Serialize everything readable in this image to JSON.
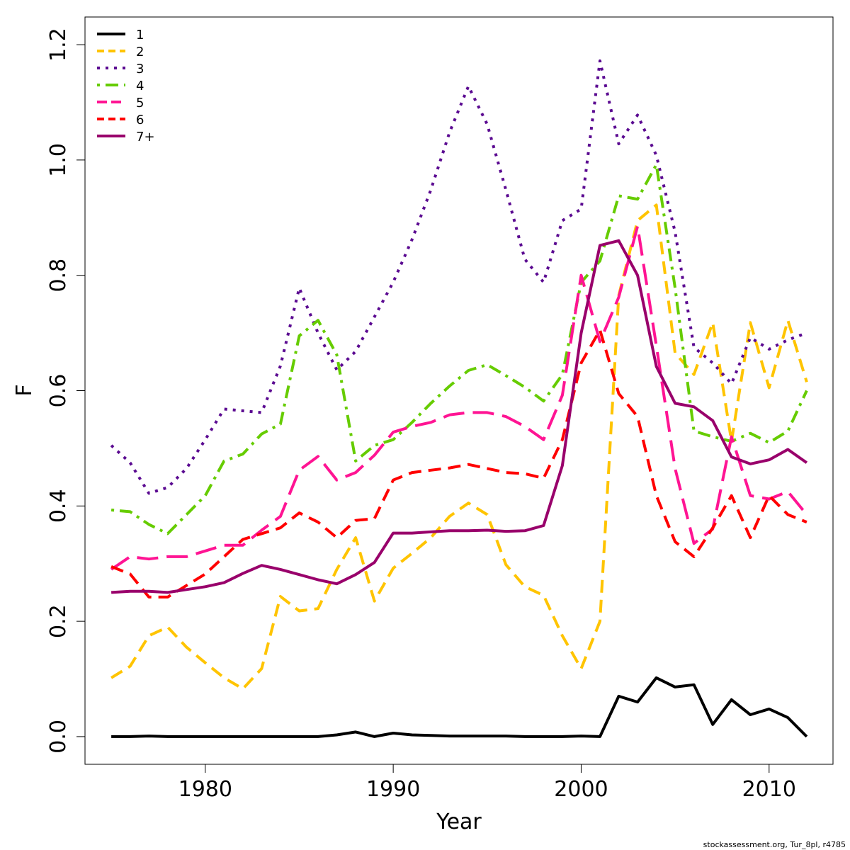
{
  "chart_data": {
    "type": "line",
    "xlabel": "Year",
    "ylabel": "F",
    "xlim": [
      1973.6,
      2013.4
    ],
    "ylim": [
      -0.048,
      1.248
    ],
    "x_ticks": [
      1980,
      1990,
      2000,
      2010
    ],
    "y_ticks": [
      0.0,
      0.2,
      0.4,
      0.6,
      0.8,
      1.0,
      1.2
    ],
    "x_tick_labels": [
      "1980",
      "1990",
      "2000",
      "2010"
    ],
    "y_tick_labels": [
      "0.0",
      "0.2",
      "0.4",
      "0.6",
      "0.8",
      "1.0",
      "1.2"
    ],
    "legend_position": "top-left",
    "grid": false,
    "x": [
      1975,
      1976,
      1977,
      1978,
      1979,
      1980,
      1981,
      1982,
      1983,
      1984,
      1985,
      1986,
      1987,
      1988,
      1989,
      1990,
      1991,
      1992,
      1993,
      1994,
      1995,
      1996,
      1997,
      1998,
      1999,
      2000,
      2001,
      2002,
      2003,
      2004,
      2005,
      2006,
      2007,
      2008,
      2009,
      2010,
      2011,
      2012
    ],
    "series": [
      {
        "name": "1",
        "color": "#000000",
        "dash": "solid",
        "values": [
          0.0,
          0.0,
          0.001,
          0.0,
          0.0,
          0.0,
          0.0,
          0.0,
          0.0,
          0.0,
          0.0,
          0.0,
          0.003,
          0.008,
          0.0,
          0.006,
          0.003,
          0.002,
          0.001,
          0.001,
          0.001,
          0.001,
          0.0,
          0.0,
          0.0,
          0.001,
          0.0,
          0.07,
          0.06,
          0.102,
          0.086,
          0.09,
          0.021,
          0.064,
          0.038,
          0.048,
          0.033,
          0.0
        ]
      },
      {
        "name": "2",
        "color": "#FFC400",
        "dash": "dashed",
        "values": [
          0.102,
          0.122,
          0.175,
          0.19,
          0.155,
          0.128,
          0.102,
          0.083,
          0.118,
          0.243,
          0.218,
          0.222,
          0.29,
          0.345,
          0.235,
          0.292,
          0.318,
          0.345,
          0.382,
          0.405,
          0.385,
          0.298,
          0.26,
          0.245,
          0.175,
          0.118,
          0.2,
          0.765,
          0.895,
          0.922,
          0.665,
          0.628,
          0.718,
          0.512,
          0.718,
          0.605,
          0.722,
          0.615
        ]
      },
      {
        "name": "3",
        "color": "#5B0A91",
        "dash": "dotted",
        "values": [
          0.505,
          0.475,
          0.422,
          0.432,
          0.465,
          0.515,
          0.568,
          0.565,
          0.562,
          0.643,
          0.778,
          0.7,
          0.636,
          0.668,
          0.728,
          0.788,
          0.862,
          0.948,
          1.048,
          1.128,
          1.062,
          0.948,
          0.828,
          0.788,
          0.895,
          0.915,
          1.172,
          1.028,
          1.078,
          1.008,
          0.875,
          0.675,
          0.648,
          0.612,
          0.692,
          0.672,
          0.688,
          0.7
        ]
      },
      {
        "name": "4",
        "color": "#66CC00",
        "dash": "dotdash",
        "values": [
          0.393,
          0.39,
          0.368,
          0.352,
          0.385,
          0.418,
          0.478,
          0.49,
          0.525,
          0.542,
          0.695,
          0.722,
          0.662,
          0.478,
          0.505,
          0.515,
          0.545,
          0.578,
          0.608,
          0.635,
          0.645,
          0.626,
          0.606,
          0.582,
          0.628,
          0.788,
          0.825,
          0.938,
          0.932,
          0.992,
          0.778,
          0.53,
          0.52,
          0.512,
          0.526,
          0.51,
          0.53,
          0.6
        ]
      },
      {
        "name": "5",
        "color": "#FF1493",
        "dash": "longdash",
        "values": [
          0.29,
          0.312,
          0.308,
          0.312,
          0.312,
          0.322,
          0.332,
          0.332,
          0.358,
          0.382,
          0.462,
          0.486,
          0.445,
          0.458,
          0.488,
          0.528,
          0.538,
          0.545,
          0.558,
          0.562,
          0.562,
          0.555,
          0.538,
          0.515,
          0.592,
          0.8,
          0.685,
          0.762,
          0.885,
          0.678,
          0.465,
          0.335,
          0.36,
          0.52,
          0.418,
          0.412,
          0.425,
          0.385
        ]
      },
      {
        "name": "6",
        "color": "#FF0000",
        "dash": "dashed",
        "values": [
          0.295,
          0.282,
          0.242,
          0.242,
          0.262,
          0.282,
          0.312,
          0.342,
          0.352,
          0.362,
          0.388,
          0.372,
          0.345,
          0.375,
          0.378,
          0.445,
          0.458,
          0.462,
          0.466,
          0.472,
          0.465,
          0.458,
          0.456,
          0.448,
          0.515,
          0.648,
          0.705,
          0.595,
          0.555,
          0.418,
          0.338,
          0.312,
          0.362,
          0.418,
          0.345,
          0.418,
          0.385,
          0.372
        ]
      },
      {
        "name": "7+",
        "color": "#99006B",
        "dash": "solid",
        "values": [
          0.25,
          0.252,
          0.252,
          0.25,
          0.255,
          0.26,
          0.267,
          0.283,
          0.297,
          0.29,
          0.281,
          0.272,
          0.265,
          0.281,
          0.302,
          0.353,
          0.353,
          0.355,
          0.357,
          0.357,
          0.358,
          0.356,
          0.357,
          0.366,
          0.47,
          0.7,
          0.852,
          0.86,
          0.8,
          0.642,
          0.578,
          0.572,
          0.548,
          0.485,
          0.473,
          0.48,
          0.498,
          0.475
        ]
      }
    ]
  },
  "footer": {
    "credit": "stockassessment.org, Tur_8pl, r4785"
  }
}
